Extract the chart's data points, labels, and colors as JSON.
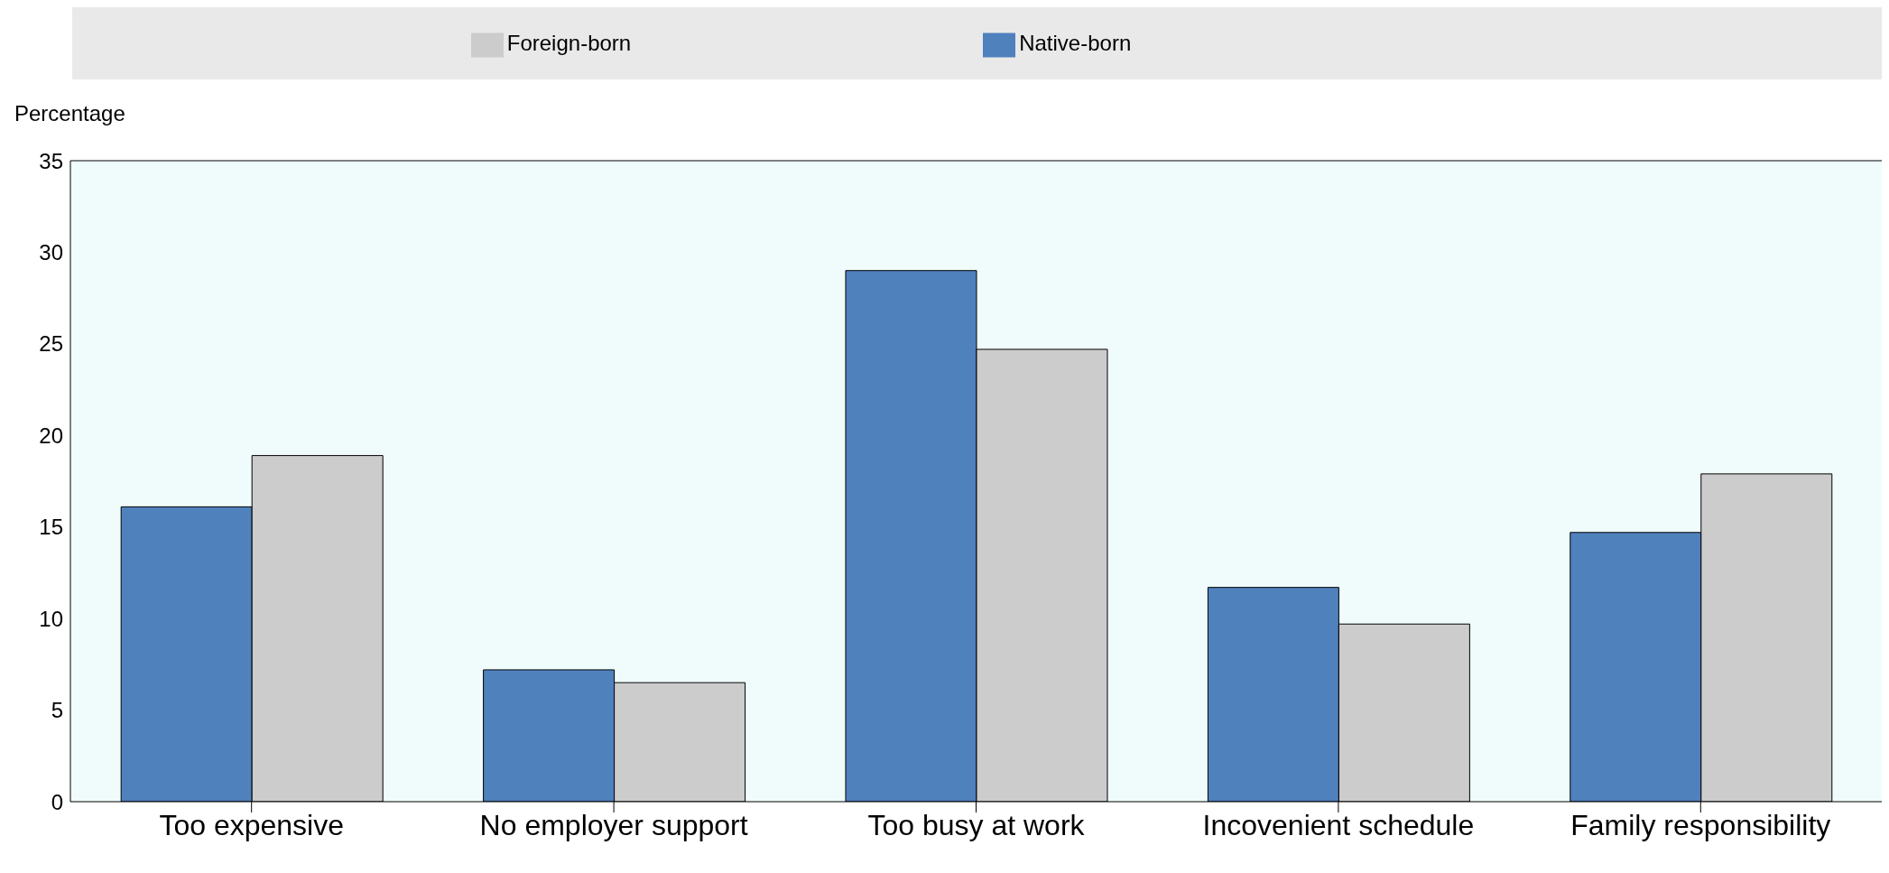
{
  "chart_data": {
    "type": "bar",
    "ylabel": "Percentage",
    "categories": [
      "Too expensive",
      "No employer support",
      "Too busy at work",
      "Incovenient schedule",
      "Family responsibility"
    ],
    "series": [
      {
        "name": "Native-born",
        "color": "#4f81bd",
        "values": [
          16.1,
          7.2,
          29.0,
          11.7,
          14.7
        ]
      },
      {
        "name": "Foreign-born",
        "color": "#cccccc",
        "values": [
          18.9,
          6.5,
          24.7,
          9.7,
          17.9
        ]
      }
    ],
    "ylim": [
      0,
      35
    ],
    "yticks": [
      0,
      5,
      10,
      15,
      20,
      25,
      30,
      35
    ],
    "grid": false,
    "legend": "top"
  }
}
